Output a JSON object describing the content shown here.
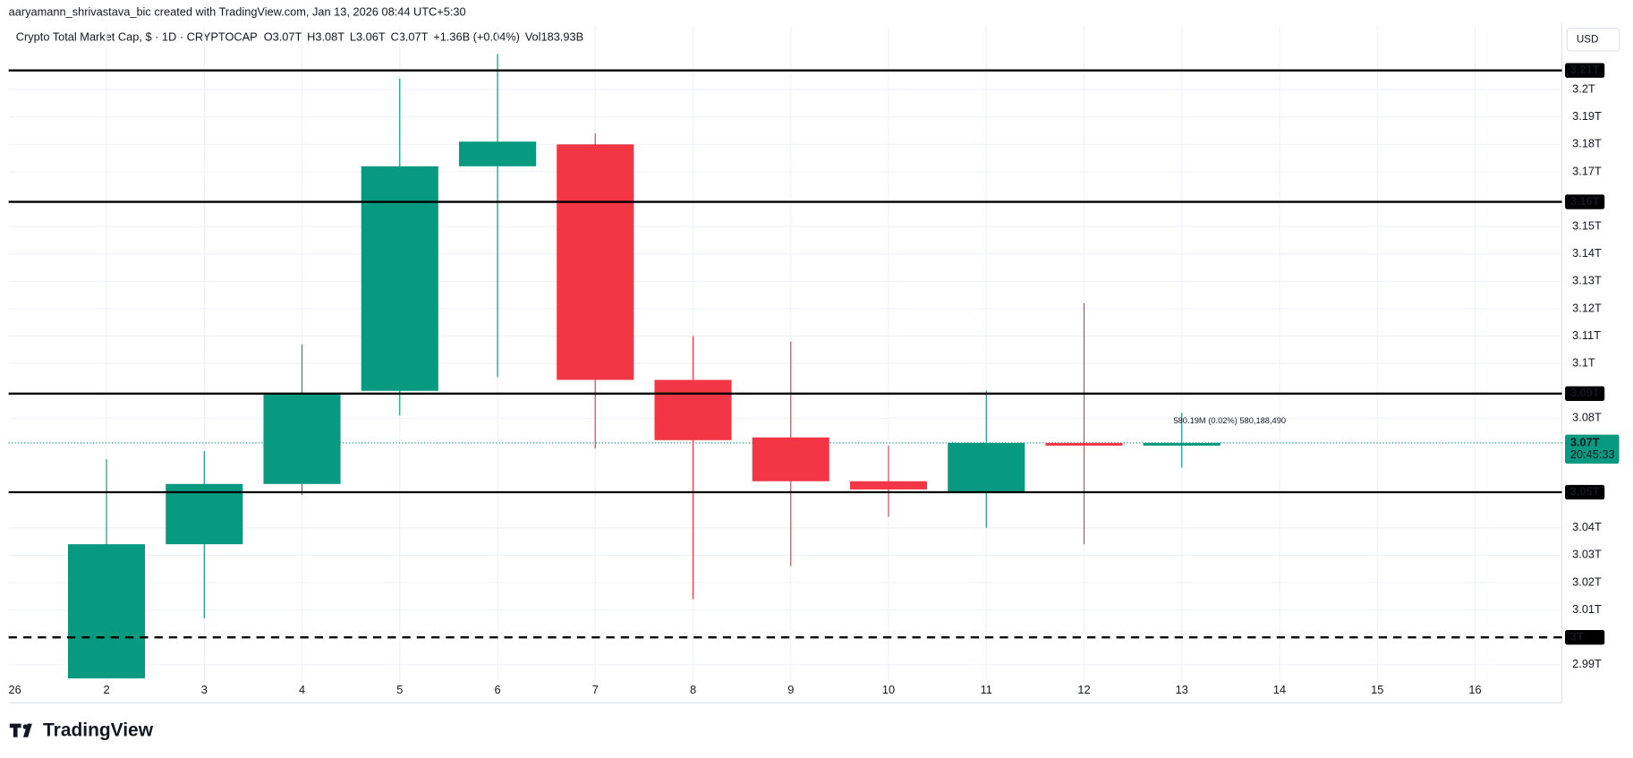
{
  "chart_data": {
    "type": "candlestick",
    "attribution": "aaryamann_shrivastava_bic created with TradingView.com, Jan 13, 2026 08:44 UTC+5:30",
    "title": "Crypto Total Market Cap, $ · 1D · CRYPTOCAP",
    "ohlc_legend": [
      {
        "key": "O",
        "value": "3.07T"
      },
      {
        "key": "H",
        "value": "3.08T"
      },
      {
        "key": "L",
        "value": "3.06T"
      },
      {
        "key": "C",
        "value": "3.07T"
      }
    ],
    "change": "+1.36B (+0.04%)",
    "volume_key": "Vol",
    "volume": "183.93B",
    "currency": "USD",
    "brand": "TradingView",
    "categories": [
      "26",
      "2",
      "3",
      "4",
      "5",
      "6",
      "7",
      "8",
      "9",
      "10",
      "11",
      "12",
      "13",
      "14",
      "15",
      "16"
    ],
    "open": [
      null,
      2.985,
      3.034,
      3.056,
      3.09,
      3.172,
      3.18,
      3.094,
      3.073,
      3.057,
      3.053,
      3.071,
      3.07,
      null,
      null,
      null
    ],
    "high": [
      null,
      3.065,
      3.068,
      3.107,
      3.204,
      3.213,
      3.184,
      3.11,
      3.108,
      3.07,
      3.09,
      3.122,
      3.082,
      null,
      null,
      null
    ],
    "low": [
      null,
      2.985,
      3.007,
      3.052,
      3.081,
      3.095,
      3.069,
      3.014,
      3.026,
      3.044,
      3.04,
      3.034,
      3.062,
      null,
      null,
      null
    ],
    "close": [
      null,
      3.034,
      3.056,
      3.089,
      3.172,
      3.181,
      3.094,
      3.072,
      3.057,
      3.054,
      3.071,
      3.07,
      3.071,
      null,
      null,
      null
    ],
    "up_color": "#089981",
    "down_color": "#f23645",
    "ylim": [
      2.9837,
      3.2156
    ],
    "yticks": [
      {
        "value": 2.99,
        "label": "2.99T"
      },
      {
        "value": 3.01,
        "label": "3.01T"
      },
      {
        "value": 3.02,
        "label": "3.02T"
      },
      {
        "value": 3.03,
        "label": "3.03T"
      },
      {
        "value": 3.04,
        "label": "3.04T"
      },
      {
        "value": 3.08,
        "label": "3.08T"
      },
      {
        "value": 3.1,
        "label": "3.1T"
      },
      {
        "value": 3.11,
        "label": "3.11T"
      },
      {
        "value": 3.12,
        "label": "3.12T"
      },
      {
        "value": 3.13,
        "label": "3.13T"
      },
      {
        "value": 3.14,
        "label": "3.14T"
      },
      {
        "value": 3.15,
        "label": "3.15T"
      },
      {
        "value": 3.17,
        "label": "3.17T"
      },
      {
        "value": 3.18,
        "label": "3.18T"
      },
      {
        "value": 3.19,
        "label": "3.19T"
      },
      {
        "value": 3.2,
        "label": "3.2T"
      }
    ],
    "grid": true,
    "levels": [
      {
        "value": 3.207,
        "label": "3.21T",
        "style": "solid"
      },
      {
        "value": 3.159,
        "label": "3.16T",
        "style": "solid"
      },
      {
        "value": 3.089,
        "label": "3.09T",
        "style": "solid"
      },
      {
        "value": 3.053,
        "label": "3.05T",
        "style": "solid"
      },
      {
        "value": 3.0,
        "label": "3T",
        "style": "dashed"
      }
    ],
    "price_line": {
      "value": 3.071,
      "label": "3.07T",
      "countdown": "20:45:33",
      "color": "#089981"
    },
    "annotation": {
      "text": "580.19M (0.02%) 580,188,490",
      "value": 3.079,
      "category": 12
    }
  }
}
